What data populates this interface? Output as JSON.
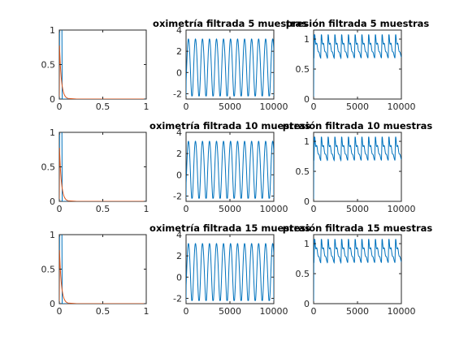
{
  "colors": {
    "blue": "#0072bd",
    "orange": "#d95319",
    "axis": "#262626"
  },
  "chart_data": [
    {
      "type": "line",
      "title": "",
      "xlim": [
        0,
        1
      ],
      "ylim": [
        0,
        1
      ],
      "xticks": [
        0,
        0.5,
        1
      ],
      "yticks": [
        0,
        0.5,
        1
      ],
      "series": [
        {
          "color": "#0072bd",
          "shape": "pulse_blue"
        },
        {
          "color": "#d95319",
          "shape": "decay_orange"
        }
      ]
    },
    {
      "type": "line",
      "title": "oximetría filtrada 5 muestras",
      "xlim": [
        0,
        10000
      ],
      "ylim": [
        -2.5,
        4
      ],
      "xticks": [
        0,
        5000,
        10000
      ],
      "yticks": [
        -2,
        0,
        2,
        4
      ],
      "series": [
        {
          "color": "#0072bd",
          "shape": "oxi",
          "cycles": 12.5,
          "min": -2.2,
          "max": 3.3
        }
      ]
    },
    {
      "type": "line",
      "title": "presión filtrada 5 muestras",
      "xlim": [
        0,
        10000
      ],
      "ylim": [
        0,
        1.15
      ],
      "xticks": [
        0,
        5000,
        10000
      ],
      "yticks": [
        0,
        0.5,
        1
      ],
      "series": [
        {
          "color": "#0072bd",
          "shape": "pres",
          "cycles": 13,
          "min": 0.68,
          "max": 1.07
        }
      ]
    },
    {
      "type": "line",
      "title": "",
      "xlim": [
        0,
        1
      ],
      "ylim": [
        0,
        1
      ],
      "xticks": [
        0,
        0.5,
        1
      ],
      "yticks": [
        0,
        0.5,
        1
      ],
      "series": [
        {
          "color": "#0072bd",
          "shape": "pulse_blue"
        },
        {
          "color": "#d95319",
          "shape": "decay_orange"
        }
      ]
    },
    {
      "type": "line",
      "title": "oximetría filtrada 10 muestras",
      "xlim": [
        0,
        10000
      ],
      "ylim": [
        -2.5,
        4
      ],
      "xticks": [
        0,
        5000,
        10000
      ],
      "yticks": [
        -2,
        0,
        2,
        4
      ],
      "series": [
        {
          "color": "#0072bd",
          "shape": "oxi",
          "cycles": 12.5,
          "min": -2.2,
          "max": 3.3
        }
      ]
    },
    {
      "type": "line",
      "title": "presión filtrada 10 muestras",
      "xlim": [
        0,
        10000
      ],
      "ylim": [
        0,
        1.15
      ],
      "xticks": [
        0,
        5000,
        10000
      ],
      "yticks": [
        0,
        0.5,
        1
      ],
      "series": [
        {
          "color": "#0072bd",
          "shape": "pres",
          "cycles": 13,
          "min": 0.68,
          "max": 1.07
        }
      ]
    },
    {
      "type": "line",
      "title": "",
      "xlim": [
        0,
        1
      ],
      "ylim": [
        0,
        1
      ],
      "xticks": [
        0,
        0.5,
        1
      ],
      "yticks": [
        0,
        0.5,
        1
      ],
      "series": [
        {
          "color": "#0072bd",
          "shape": "pulse_blue"
        },
        {
          "color": "#d95319",
          "shape": "decay_orange"
        }
      ]
    },
    {
      "type": "line",
      "title": "oximetría filtrada 15 muestras",
      "xlim": [
        0,
        10000
      ],
      "ylim": [
        -2.5,
        4
      ],
      "xticks": [
        0,
        5000,
        10000
      ],
      "yticks": [
        -2,
        0,
        2,
        4
      ],
      "series": [
        {
          "color": "#0072bd",
          "shape": "oxi",
          "cycles": 12.5,
          "min": -2.2,
          "max": 3.3
        }
      ]
    },
    {
      "type": "line",
      "title": "presión filtrada 15 muestras",
      "xlim": [
        0,
        10000
      ],
      "ylim": [
        0,
        1.15
      ],
      "xticks": [
        0,
        5000,
        10000
      ],
      "yticks": [
        0,
        0.5,
        1
      ],
      "series": [
        {
          "color": "#0072bd",
          "shape": "pres",
          "cycles": 13,
          "min": 0.68,
          "max": 1.07
        }
      ]
    }
  ]
}
